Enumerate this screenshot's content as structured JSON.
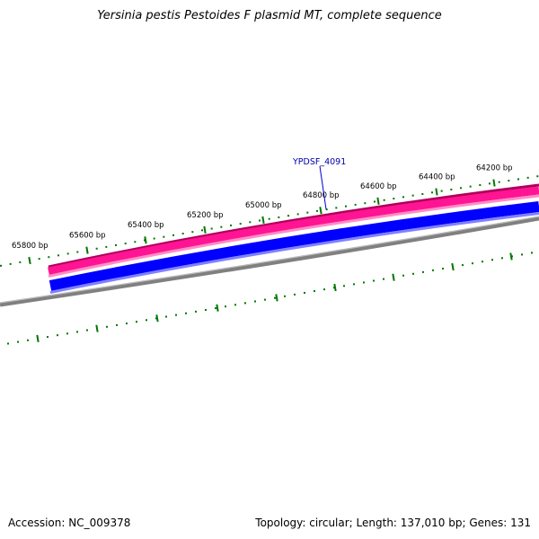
{
  "title": "Yersinia pestis Pestoides F plasmid MT, complete sequence",
  "footer": {
    "accession": "Accession: NC_009378",
    "summary": "Topology: circular; Length: 137,010 bp; Genes: 131"
  },
  "colors": {
    "forward_strand_dark": "#b0005a",
    "forward_strand": "#ff1493",
    "forward_strand_light": "#ff8cc8",
    "reverse_strand_dark": "#0000cc",
    "reverse_strand": "#0000ff",
    "reverse_strand_light": "#8080ff",
    "backbone": "#808080",
    "ticks": "#007700",
    "feature_label": "#0000aa"
  },
  "ruler": {
    "major_ticks": [
      {
        "label": "65800 bp"
      },
      {
        "label": "65600 bp"
      },
      {
        "label": "65400 bp"
      },
      {
        "label": "65200 bp"
      },
      {
        "label": "65000 bp"
      },
      {
        "label": "64800 bp"
      },
      {
        "label": "64600 bp"
      },
      {
        "label": "64400 bp"
      },
      {
        "label": "64200 bp"
      }
    ]
  },
  "features": [
    {
      "label": "YPDSF_4091"
    }
  ]
}
